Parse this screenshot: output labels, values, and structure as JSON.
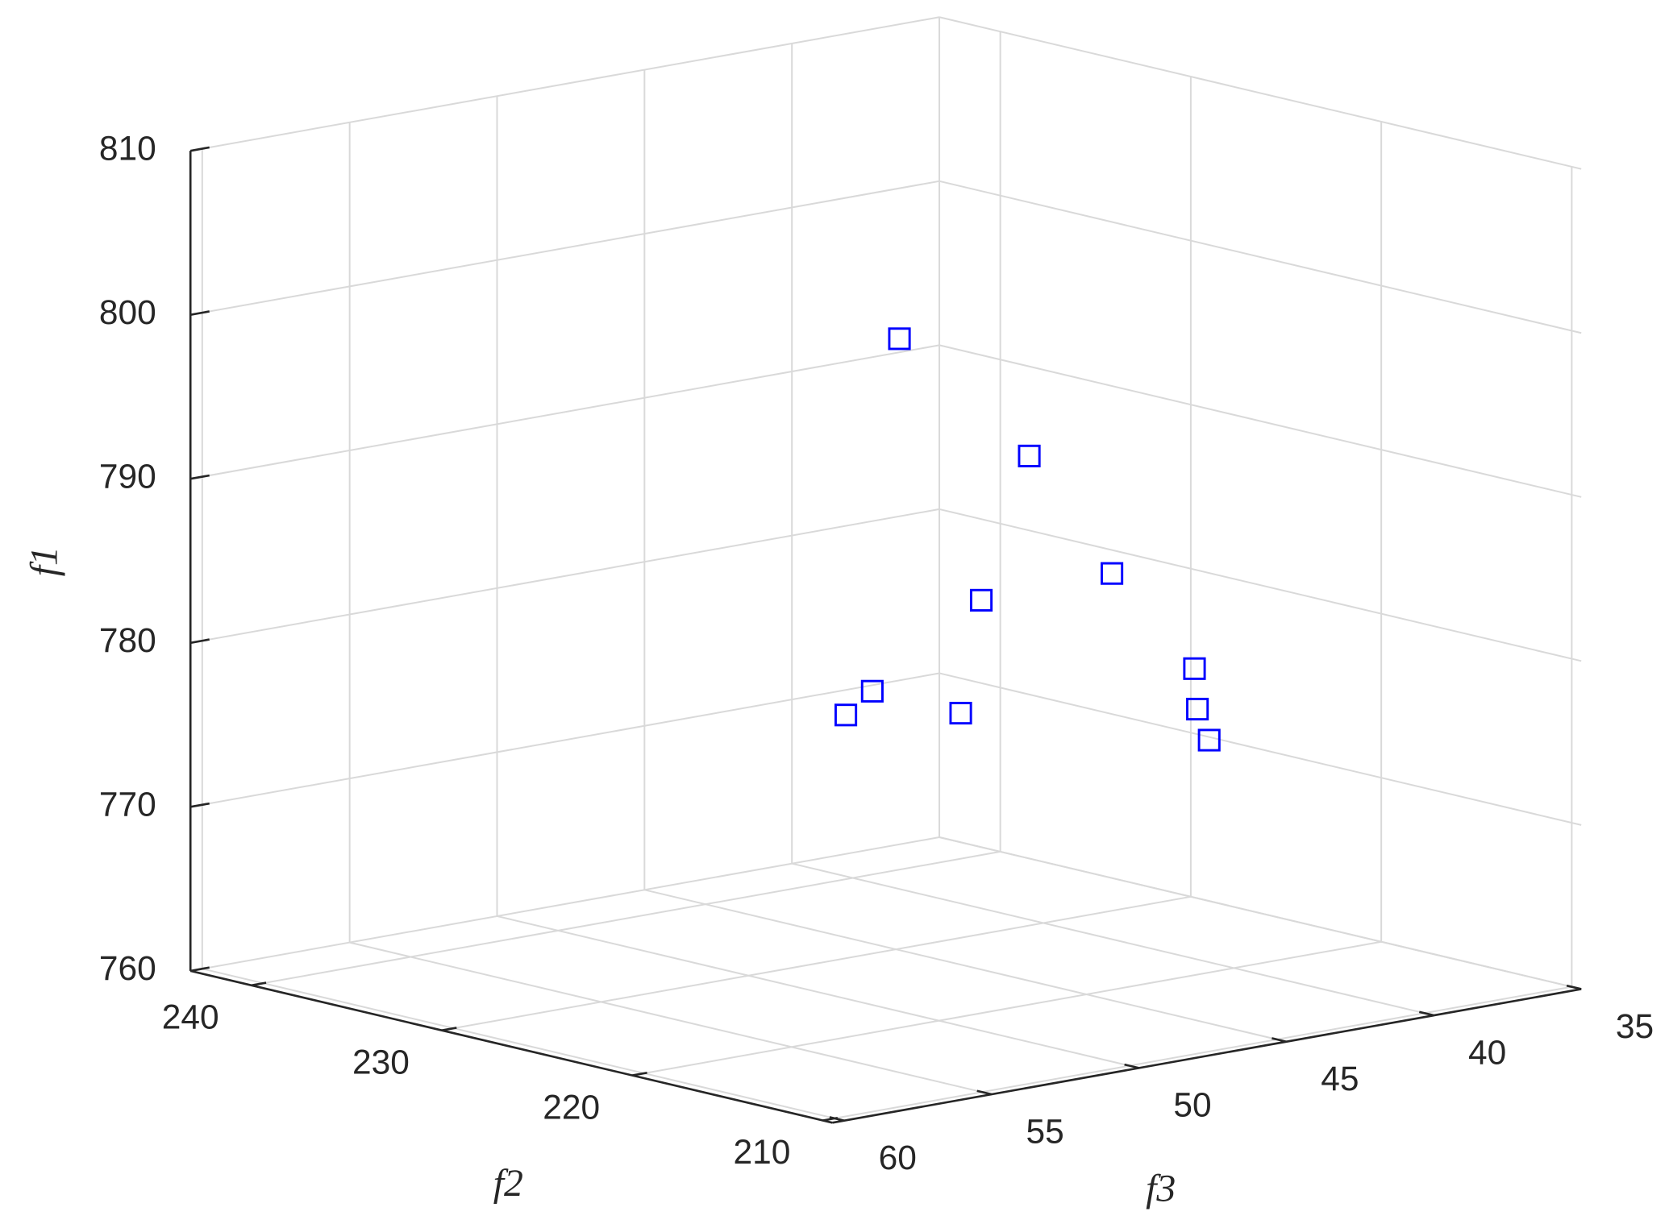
{
  "chart_data": {
    "type": "scatter3d",
    "xlabel": "f2",
    "ylabel": "f3",
    "zlabel": "f1",
    "xlim": [
      209.5,
      243.2
    ],
    "xticks": [
      210,
      220,
      230,
      240
    ],
    "ylim": [
      35,
      60.4
    ],
    "yticks": [
      35,
      40,
      45,
      50,
      55,
      60
    ],
    "zlim": [
      760,
      810
    ],
    "zticks": [
      760,
      770,
      780,
      790,
      800,
      810
    ],
    "grid": true,
    "marker": "square",
    "series": [
      {
        "color": "#0000ff",
        "x": [
          219.6,
          223.0,
          226.4,
          229.7,
          226.4,
          233.1,
          236.5,
          233.1,
          226.4,
          224.7
        ],
        "y": [
          51.6,
          45.0,
          40.0,
          42.3,
          37.2,
          43.8,
          42.5,
          40.8,
          37.1,
          37.8
        ],
        "z": [
          802.2,
          792.0,
          782.3,
          780.5,
          775.6,
          774.5,
          771.7,
          772.2,
          773.1,
          771.9
        ]
      }
    ]
  }
}
